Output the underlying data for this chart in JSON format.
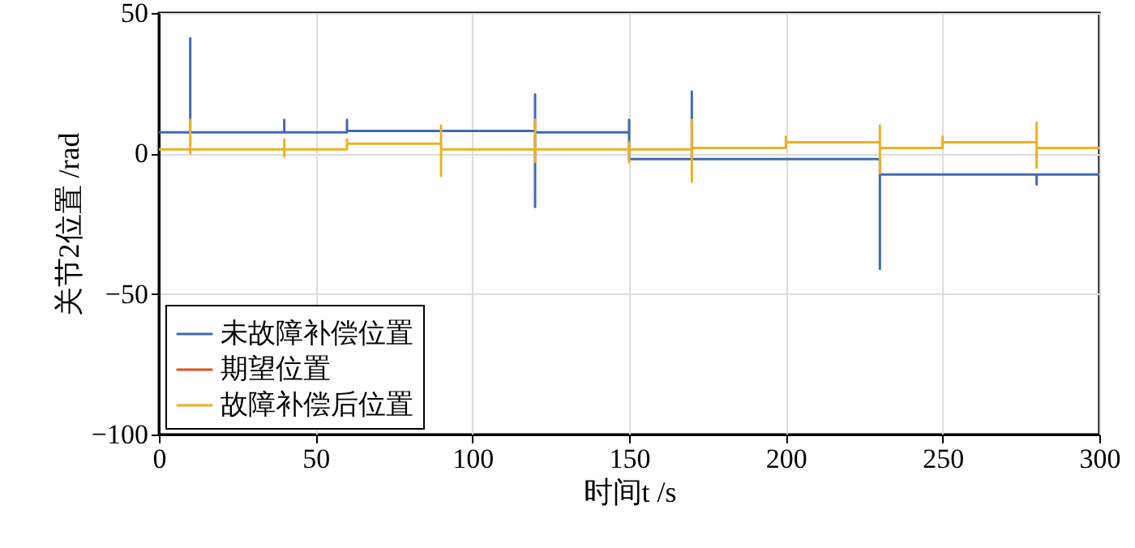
{
  "chart_data": {
    "type": "line",
    "xlabel": "时间t /s",
    "ylabel": "关节2位置 /rad",
    "xlim": [
      0,
      300
    ],
    "xticks": [
      0,
      50,
      100,
      150,
      200,
      250,
      300
    ],
    "ylim": [
      -100,
      50
    ],
    "yticks": [
      -100,
      -50,
      0,
      50
    ],
    "grid": true,
    "legend": "bottom left",
    "line_style": "solid",
    "marker": "none",
    "series": [
      {
        "name": "未故障补偿位置",
        "color": "#4169b0",
        "x": [
          0,
          10,
          10,
          10,
          10,
          40,
          40,
          40,
          60,
          60,
          60,
          120,
          120,
          120,
          120,
          150,
          150,
          150,
          170,
          170,
          170,
          230,
          230,
          230,
          280,
          280,
          280,
          300
        ],
        "values": [
          7.5,
          7.5,
          41,
          7.5,
          7.5,
          7.5,
          12,
          7.5,
          7.5,
          12,
          8,
          8,
          21,
          -19,
          7.5,
          7.5,
          12,
          -2,
          -2,
          22,
          -2,
          -2,
          -41,
          -7.5,
          -7.5,
          -11,
          -7.5,
          -7.5
        ]
      },
      {
        "name": "期望位置",
        "color": "#d95319"
      },
      {
        "name": "故障补偿后位置",
        "color": "#edb120",
        "x": [
          0,
          10,
          10,
          10,
          10,
          40,
          40,
          40,
          40,
          60,
          60,
          60,
          90,
          90,
          90,
          90,
          120,
          120,
          120,
          120,
          150,
          150,
          150,
          150,
          170,
          170,
          170,
          170,
          200,
          200,
          200,
          230,
          230,
          230,
          230,
          250,
          250,
          250,
          280,
          280,
          280,
          280,
          300
        ],
        "values": [
          1.5,
          1.5,
          12,
          0,
          1.5,
          1.5,
          5,
          -1,
          1.5,
          1.5,
          5,
          3.5,
          3.5,
          10,
          -8,
          1.5,
          1.5,
          12,
          -3,
          1.5,
          1.5,
          4,
          -3,
          1.5,
          1.5,
          12,
          -10,
          2,
          2,
          6,
          4,
          4,
          10,
          -7,
          2,
          2,
          6,
          4,
          4,
          11,
          -5,
          2,
          2
        ]
      }
    ]
  }
}
